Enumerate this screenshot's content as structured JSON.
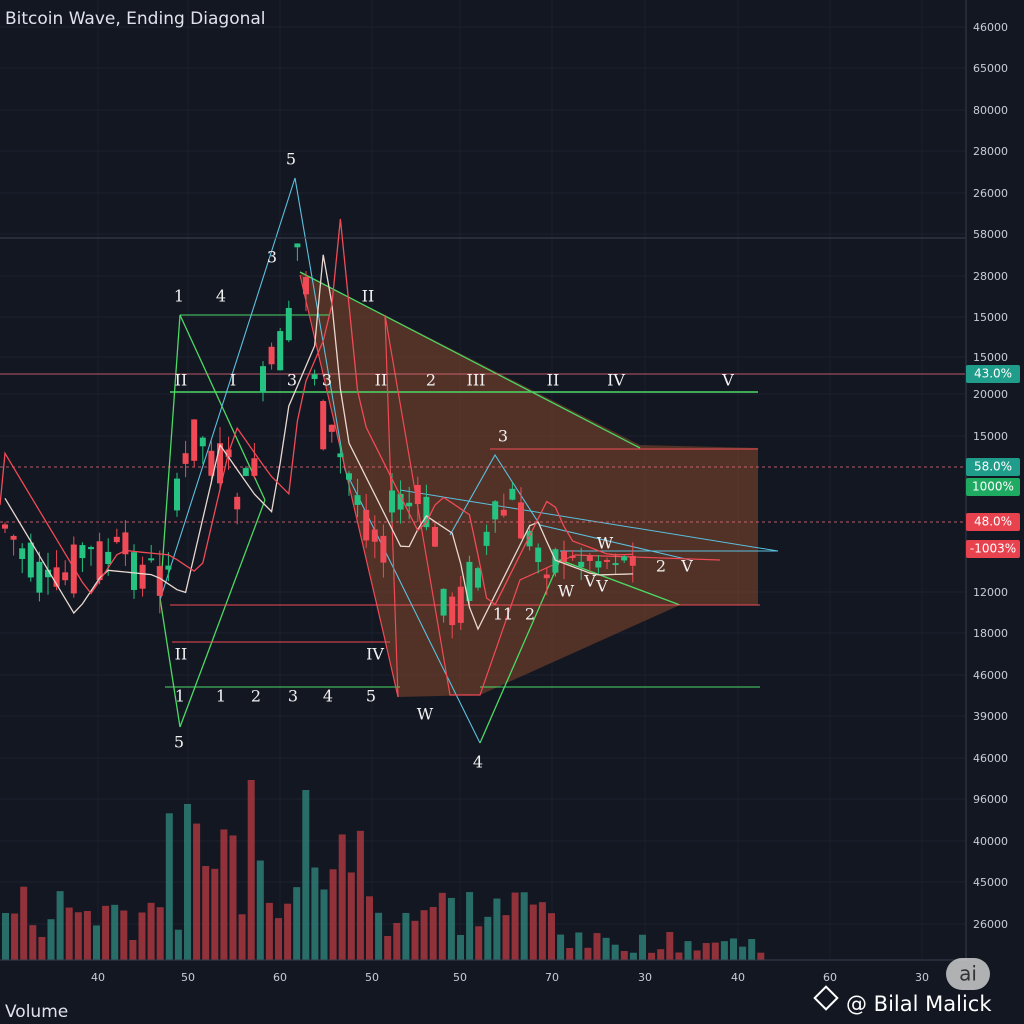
{
  "title": "Bitcoin Wave, Ending Diagonal",
  "price_axis": [
    "46000",
    "65000",
    "80000",
    "28000",
    "26000",
    "58000",
    "28000",
    "15000",
    "15000",
    "20000",
    "15000",
    "12000",
    "18000",
    "46000",
    "39000",
    "46000",
    "96000",
    "40000",
    "45000",
    "26000"
  ],
  "time_axis": [
    "40",
    "50",
    "60",
    "50",
    "50",
    "70",
    "30",
    "40",
    "60",
    "30"
  ],
  "badges": [
    "43.0%",
    "58.0%",
    "1000%",
    "48.0%",
    "-1003%"
  ],
  "wave_labels": [
    "5",
    "3",
    "1",
    "4",
    "II",
    "II",
    "I",
    "3",
    "3",
    "II",
    "2",
    "III",
    "II",
    "IV",
    "V",
    "3",
    "W",
    "11",
    "2",
    "W",
    "V",
    "V",
    "2",
    "V",
    "II",
    "IV",
    "1",
    "1",
    "2",
    "3",
    "4",
    "5",
    "W",
    "5",
    "4"
  ],
  "volume_label": "Volume",
  "ai_badge": "ai",
  "watermark": "@ Bilal Malick"
}
